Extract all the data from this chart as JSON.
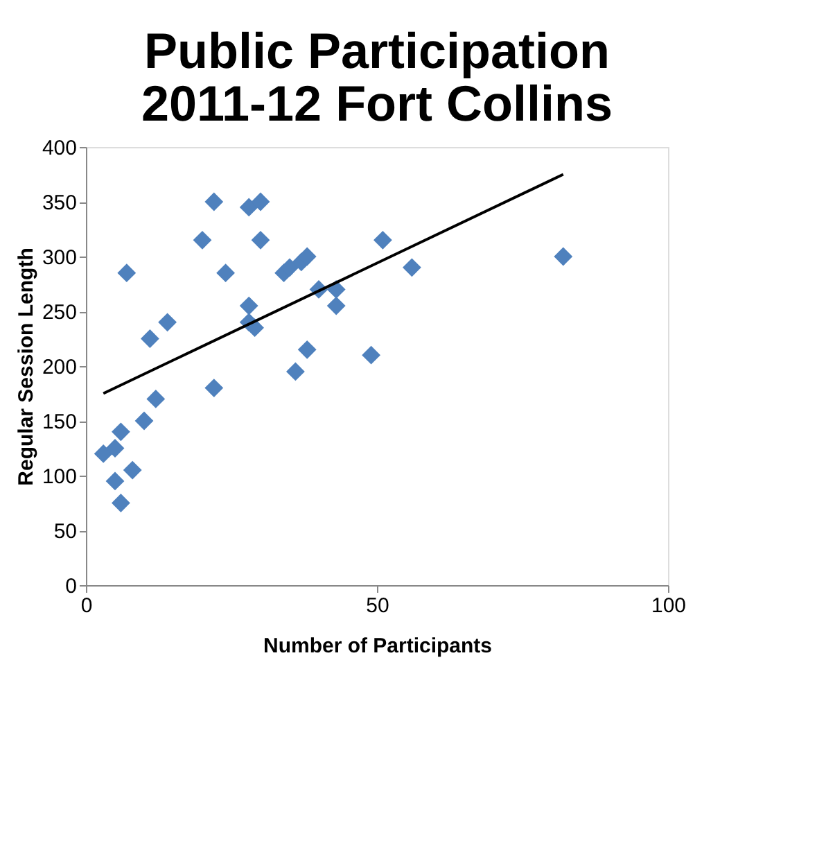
{
  "chart_data": {
    "type": "scatter",
    "title": [
      "Public Participation",
      "2011-12 Fort Collins"
    ],
    "xlabel": "Number of Participants",
    "ylabel": "Regular Session Length",
    "xlim": [
      0,
      100
    ],
    "xticks": [
      0,
      50,
      100
    ],
    "ylim": [
      0,
      400
    ],
    "yticks": [
      0,
      50,
      100,
      150,
      200,
      250,
      300,
      350,
      400
    ],
    "grid": false,
    "series": [
      {
        "marker": "diamond",
        "color": "#4f81bd",
        "x": [
          3,
          5,
          5,
          6,
          6,
          7,
          8,
          10,
          11,
          12,
          14,
          20,
          22,
          22,
          24,
          28,
          28,
          28,
          29,
          30,
          30,
          34,
          35,
          37,
          38,
          38,
          36,
          40,
          43,
          43,
          49,
          51,
          56,
          82
        ],
        "values": [
          120,
          125,
          95,
          140,
          75,
          285,
          105,
          150,
          225,
          170,
          240,
          315,
          350,
          180,
          285,
          345,
          255,
          240,
          235,
          350,
          315,
          285,
          290,
          295,
          300,
          215,
          195,
          270,
          255,
          270,
          210,
          315,
          290,
          300
        ]
      },
      {
        "type": "line",
        "color": "#000000",
        "line_style": "solid",
        "x": [
          3,
          82
        ],
        "values": [
          175,
          375
        ]
      }
    ]
  }
}
